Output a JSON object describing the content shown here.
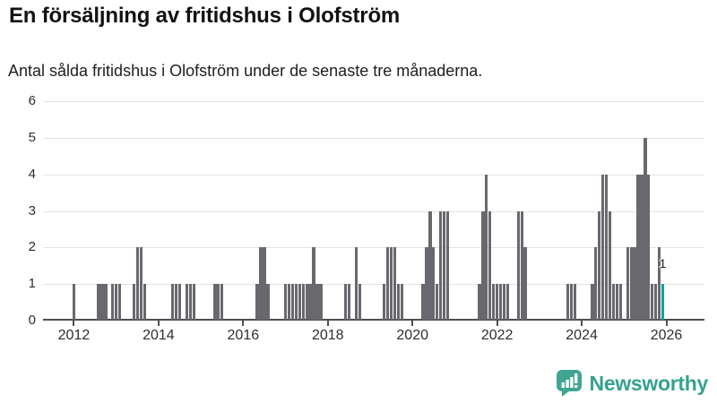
{
  "header": {
    "title": "En försäljning av fritidshus i Olofström",
    "subtitle": "Antal sålda fritidshus i Olofström under de senaste tre månaderna."
  },
  "chart_data": {
    "type": "bar",
    "title": "En försäljning av fritidshus i Olofström",
    "subtitle": "Antal sålda fritidshus i Olofström under de senaste tre månaderna.",
    "xlabel": "",
    "ylabel": "",
    "y_range": [
      0,
      6
    ],
    "yticks": [
      0,
      1,
      2,
      3,
      4,
      5,
      6
    ],
    "xticks": [
      2012,
      2014,
      2016,
      2018,
      2020,
      2022,
      2024,
      2026
    ],
    "x_range_years": [
      2011.27,
      2026.9
    ],
    "grid": true,
    "bar_color": "#68686f",
    "highlight_color": "#12a19b",
    "highlight_month": "2025-12",
    "annotation": {
      "text": "1",
      "month": "2025-12",
      "value": 1
    },
    "series": [
      [
        "2012-01",
        1
      ],
      [
        "2012-08",
        1
      ],
      [
        "2012-09",
        1
      ],
      [
        "2012-10",
        1
      ],
      [
        "2012-12",
        1
      ],
      [
        "2013-01",
        1
      ],
      [
        "2013-02",
        1
      ],
      [
        "2013-06",
        1
      ],
      [
        "2013-07",
        2
      ],
      [
        "2013-08",
        2
      ],
      [
        "2013-09",
        1
      ],
      [
        "2014-05",
        1
      ],
      [
        "2014-06",
        1
      ],
      [
        "2014-07",
        1
      ],
      [
        "2014-09",
        1
      ],
      [
        "2014-10",
        1
      ],
      [
        "2014-11",
        1
      ],
      [
        "2015-05",
        1
      ],
      [
        "2015-06",
        1
      ],
      [
        "2015-07",
        1
      ],
      [
        "2016-05",
        1
      ],
      [
        "2016-06",
        2
      ],
      [
        "2016-07",
        2
      ],
      [
        "2016-08",
        1
      ],
      [
        "2017-01",
        1
      ],
      [
        "2017-02",
        1
      ],
      [
        "2017-03",
        1
      ],
      [
        "2017-04",
        1
      ],
      [
        "2017-05",
        1
      ],
      [
        "2017-06",
        1
      ],
      [
        "2017-07",
        1
      ],
      [
        "2017-08",
        1
      ],
      [
        "2017-09",
        2
      ],
      [
        "2017-10",
        1
      ],
      [
        "2017-11",
        1
      ],
      [
        "2018-06",
        1
      ],
      [
        "2018-07",
        1
      ],
      [
        "2018-09",
        2
      ],
      [
        "2018-10",
        1
      ],
      [
        "2019-05",
        1
      ],
      [
        "2019-06",
        2
      ],
      [
        "2019-07",
        2
      ],
      [
        "2019-08",
        2
      ],
      [
        "2019-09",
        1
      ],
      [
        "2019-10",
        1
      ],
      [
        "2020-04",
        1
      ],
      [
        "2020-05",
        2
      ],
      [
        "2020-06",
        3
      ],
      [
        "2020-07",
        2
      ],
      [
        "2020-08",
        1
      ],
      [
        "2020-09",
        3
      ],
      [
        "2020-10",
        3
      ],
      [
        "2020-11",
        3
      ],
      [
        "2021-08",
        1
      ],
      [
        "2021-09",
        3
      ],
      [
        "2021-10",
        4
      ],
      [
        "2021-11",
        3
      ],
      [
        "2021-12",
        1
      ],
      [
        "2022-01",
        1
      ],
      [
        "2022-02",
        1
      ],
      [
        "2022-03",
        1
      ],
      [
        "2022-04",
        1
      ],
      [
        "2022-07",
        3
      ],
      [
        "2022-08",
        3
      ],
      [
        "2022-09",
        2
      ],
      [
        "2023-09",
        1
      ],
      [
        "2023-10",
        1
      ],
      [
        "2023-11",
        1
      ],
      [
        "2024-04",
        1
      ],
      [
        "2024-05",
        2
      ],
      [
        "2024-06",
        3
      ],
      [
        "2024-07",
        4
      ],
      [
        "2024-08",
        4
      ],
      [
        "2024-09",
        3
      ],
      [
        "2024-10",
        1
      ],
      [
        "2024-11",
        1
      ],
      [
        "2024-12",
        1
      ],
      [
        "2025-02",
        2
      ],
      [
        "2025-03",
        2
      ],
      [
        "2025-04",
        2
      ],
      [
        "2025-05",
        4
      ],
      [
        "2025-06",
        4
      ],
      [
        "2025-07",
        5
      ],
      [
        "2025-08",
        4
      ],
      [
        "2025-09",
        1
      ],
      [
        "2025-10",
        1
      ],
      [
        "2025-11",
        2
      ],
      [
        "2025-12",
        1
      ]
    ]
  },
  "branding": {
    "logo_text": "Newsworthy",
    "logo_color": "#41a592"
  }
}
